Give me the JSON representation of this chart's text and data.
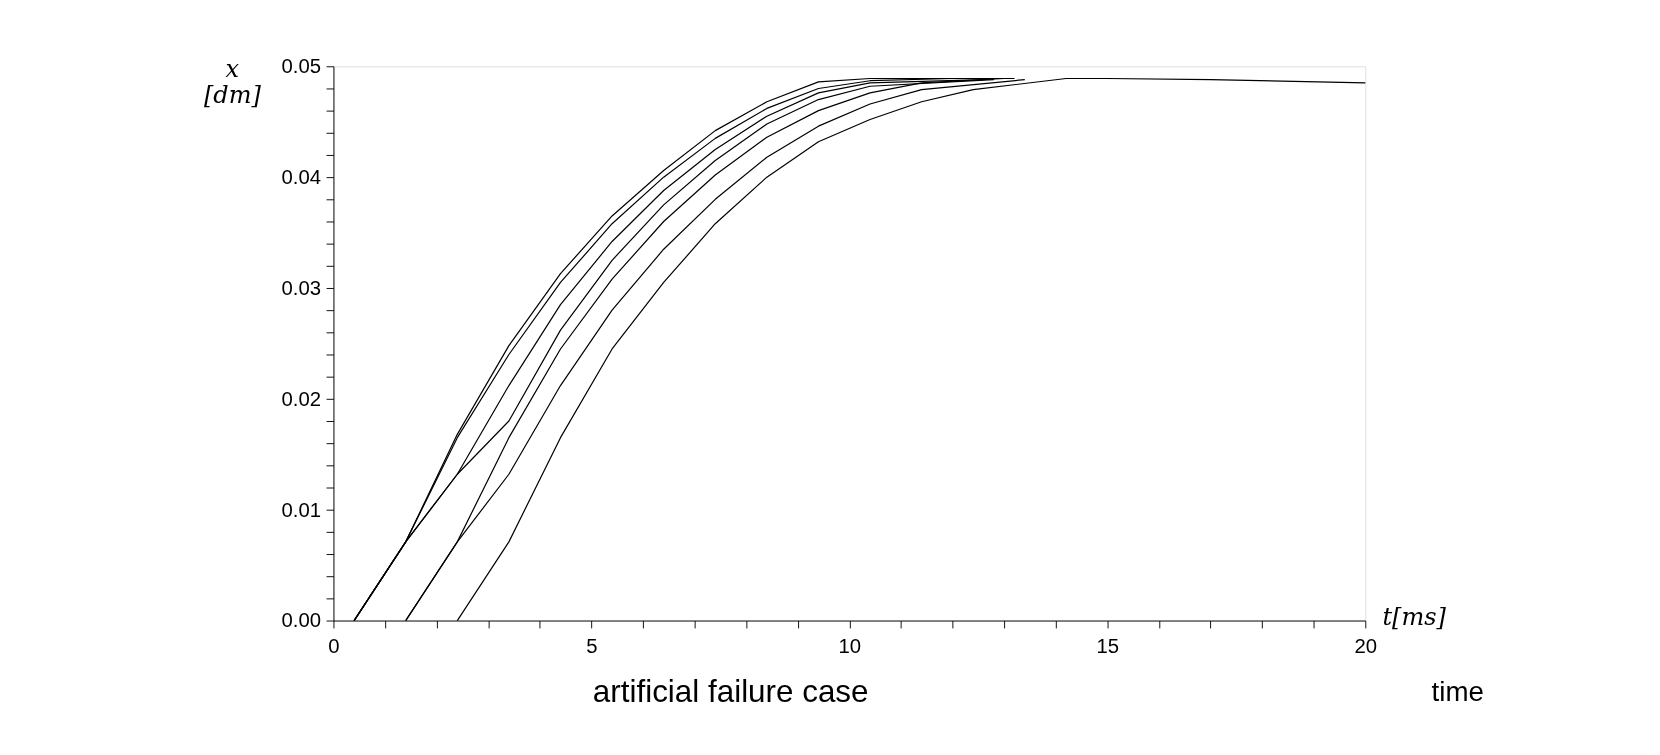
{
  "chart_data": {
    "type": "line",
    "xlabel": "t[ms]",
    "ylabel": "x [dm]",
    "annotations": [
      "artificial failure case",
      "time"
    ],
    "xlim": [
      0,
      20
    ],
    "ylim": [
      0,
      0.05
    ],
    "xticks": [
      0,
      {
        "value": 1,
        "label": null
      },
      {
        "value": 2,
        "label": null
      },
      {
        "value": 3,
        "label": null
      },
      {
        "value": 4,
        "label": null
      },
      5,
      {
        "value": 6,
        "label": null
      },
      {
        "value": 7,
        "label": null
      },
      {
        "value": 8,
        "label": null
      },
      {
        "value": 9,
        "label": null
      },
      10,
      {
        "value": 11,
        "label": null
      },
      {
        "value": 12,
        "label": null
      },
      {
        "value": 13,
        "label": null
      },
      {
        "value": 14,
        "label": null
      },
      15,
      {
        "value": 16,
        "label": null
      },
      {
        "value": 17,
        "label": null
      },
      {
        "value": 18,
        "label": null
      },
      {
        "value": 19,
        "label": null
      },
      20
    ],
    "yticks": [
      {
        "value": 0,
        "label": "0.00"
      },
      {
        "value": 0.002,
        "label": null
      },
      {
        "value": 0.004,
        "label": null
      },
      {
        "value": 0.006,
        "label": null
      },
      {
        "value": 0.008,
        "label": null
      },
      {
        "value": 0.01,
        "label": "0.01"
      },
      {
        "value": 0.012,
        "label": null
      },
      {
        "value": 0.014,
        "label": null
      },
      {
        "value": 0.016,
        "label": null
      },
      {
        "value": 0.018,
        "label": null
      },
      {
        "value": 0.02,
        "label": "0.02"
      },
      {
        "value": 0.022,
        "label": null
      },
      {
        "value": 0.024,
        "label": null
      },
      {
        "value": 0.026,
        "label": null
      },
      {
        "value": 0.028,
        "label": null
      },
      {
        "value": 0.03,
        "label": "0.03"
      },
      {
        "value": 0.032,
        "label": null
      },
      {
        "value": 0.034,
        "label": null
      },
      {
        "value": 0.036,
        "label": null
      },
      {
        "value": 0.038,
        "label": null
      },
      {
        "value": 0.04,
        "label": "0.04"
      },
      {
        "value": 0.042,
        "label": null
      },
      {
        "value": 0.044,
        "label": null
      },
      {
        "value": 0.046,
        "label": null
      },
      {
        "value": 0.048,
        "label": null
      },
      {
        "value": 0.05,
        "label": "0.05"
      }
    ],
    "grid": false,
    "marker": "none",
    "line_style": "solid",
    "series": [
      {
        "color": "#000000",
        "x": [
          0.4,
          1.4,
          2.4,
          3.4,
          4.4,
          5.4,
          6.4,
          7.4,
          8.4,
          9.4,
          10.4,
          13.2
        ],
        "values": [
          0,
          0.0071,
          0.0168,
          0.0248,
          0.0313,
          0.0365,
          0.0406,
          0.0442,
          0.0468,
          0.0486,
          0.0489,
          0.0489
        ]
      },
      {
        "color": "#000000",
        "x": [
          0.4,
          1.4,
          2.4,
          3.4,
          4.4,
          5.4,
          6.4,
          7.4,
          8.4,
          9.4,
          10.4,
          12.0
        ],
        "values": [
          0,
          0.0071,
          0.0165,
          0.024,
          0.0305,
          0.0358,
          0.04,
          0.0435,
          0.0462,
          0.048,
          0.0487,
          0.0489
        ]
      },
      {
        "color": "#000000",
        "x": [
          0.4,
          1.4,
          2.4,
          3.4,
          4.4,
          5.4,
          6.4,
          7.4,
          8.4,
          9.4,
          10.4,
          12.6
        ],
        "values": [
          0,
          0.0071,
          0.0132,
          0.0212,
          0.0285,
          0.0342,
          0.0388,
          0.0425,
          0.0455,
          0.0476,
          0.0485,
          0.0488
        ]
      },
      {
        "color": "#000000",
        "x": [
          0.4,
          1.4,
          2.4,
          3.4,
          4.4,
          5.4,
          6.4,
          7.4,
          8.4,
          9.4,
          10.4,
          12.8
        ],
        "values": [
          0,
          0.0071,
          0.0132,
          0.018,
          0.0262,
          0.0325,
          0.0375,
          0.0415,
          0.0448,
          0.047,
          0.0482,
          0.0488
        ]
      },
      {
        "color": "#000000",
        "x": [
          1.4,
          2.4,
          3.4,
          4.4,
          5.4,
          6.4,
          7.4,
          8.4,
          9.4,
          10.4,
          11.4,
          13.0
        ],
        "values": [
          0,
          0.0071,
          0.0165,
          0.0245,
          0.0308,
          0.036,
          0.0402,
          0.0436,
          0.046,
          0.0476,
          0.0485,
          0.0489
        ]
      },
      {
        "color": "#000000",
        "x": [
          1.4,
          2.4,
          3.4,
          4.4,
          5.4,
          6.4,
          7.4,
          8.4,
          9.4,
          10.4,
          11.4,
          13.4
        ],
        "values": [
          0,
          0.0071,
          0.0132,
          0.0212,
          0.028,
          0.0335,
          0.038,
          0.0418,
          0.0446,
          0.0466,
          0.0479,
          0.0488
        ]
      },
      {
        "color": "#000000",
        "x": [
          2.4,
          3.4,
          4.4,
          5.4,
          6.4,
          7.4,
          8.4,
          9.4,
          10.4,
          11.4,
          12.4,
          14.2,
          15,
          17,
          20
        ],
        "values": [
          0,
          0.0071,
          0.0165,
          0.0245,
          0.0305,
          0.0358,
          0.04,
          0.0432,
          0.0452,
          0.0468,
          0.0479,
          0.0489,
          0.0489,
          0.0488,
          0.0485
        ]
      }
    ]
  }
}
